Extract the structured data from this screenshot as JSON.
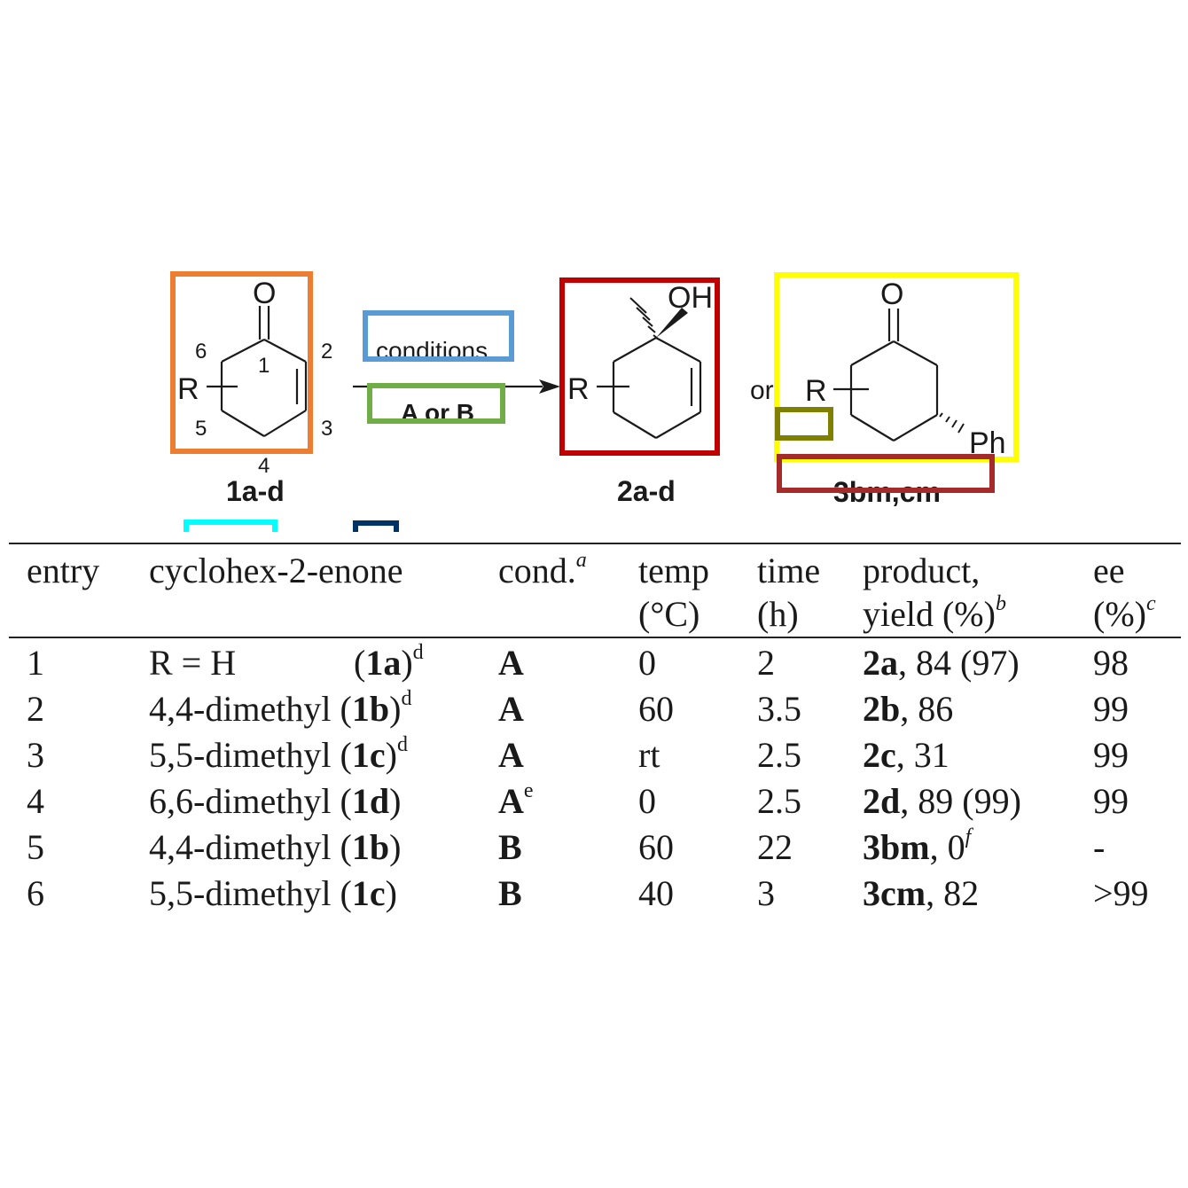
{
  "scheme": {
    "reactant_label": "1a-d",
    "product1_label": "2a-d",
    "product2_label": "3bm,cm",
    "arrow_top": "conditions",
    "arrow_bottom": "A or B",
    "or_text": "or",
    "ring_numbers": [
      "1",
      "2",
      "3",
      "4",
      "5",
      "6"
    ],
    "atom_O": "O",
    "atom_R": "R",
    "atom_OH": "OH",
    "atom_Ph": "Ph",
    "highlight_colors": [
      "#ED7D31",
      "#5B9BD5",
      "#70AD47",
      "#C00000",
      "#FFFF00",
      "#808000",
      "#A52A2A",
      "#00FFFF",
      "#003366"
    ]
  },
  "table": {
    "headers": {
      "entry": "entry",
      "substrate": "cyclohex-2-enone",
      "cond": "cond.",
      "cond_sup": "a",
      "temp": "temp",
      "temp_unit": "(°C)",
      "time": "time",
      "time_unit": "(h)",
      "product": "product,",
      "yield": "yield (%)",
      "yield_sup": "b",
      "ee": "ee",
      "ee_unit": "(%)",
      "ee_sup": "c"
    },
    "rows": [
      {
        "entry": "1",
        "sub": "R = H",
        "code": "1a",
        "sup": "d",
        "cond": "A",
        "cond_sup": "",
        "temp": "0",
        "time": "2",
        "prod": "2a",
        "yield": ", 84 (97)",
        "yield_sup": "",
        "ee": "98"
      },
      {
        "entry": "2",
        "sub": "4,4-dimethyl",
        "code": "1b",
        "sup": "d",
        "cond": "A",
        "cond_sup": "",
        "temp": "60",
        "time": "3.5",
        "prod": "2b",
        "yield": ", 86",
        "yield_sup": "",
        "ee": "99"
      },
      {
        "entry": "3",
        "sub": "5,5-dimethyl",
        "code": "1c",
        "sup": "d",
        "cond": "A",
        "cond_sup": "",
        "temp": "rt",
        "time": "2.5",
        "prod": "2c",
        "yield": ", 31",
        "yield_sup": "",
        "ee": "99"
      },
      {
        "entry": "4",
        "sub": "6,6-dimethyl",
        "code": "1d",
        "sup": "",
        "cond": "A",
        "cond_sup": "e",
        "temp": "0",
        "time": "2.5",
        "prod": "2d",
        "yield": ", 89 (99)",
        "yield_sup": "",
        "ee": "99"
      },
      {
        "entry": "5",
        "sub": "4,4-dimethyl",
        "code": "1b",
        "sup": "",
        "cond": "B",
        "cond_sup": "",
        "temp": "60",
        "time": "22",
        "prod": "3bm",
        "yield": ", 0",
        "yield_sup": "f",
        "ee": "-"
      },
      {
        "entry": "6",
        "sub": "5,5-dimethyl",
        "code": "1c",
        "sup": "",
        "cond": "B",
        "cond_sup": "",
        "temp": "40",
        "time": "3",
        "prod": "3cm",
        "yield": ", 82",
        "yield_sup": "",
        "ee": ">99"
      }
    ]
  }
}
